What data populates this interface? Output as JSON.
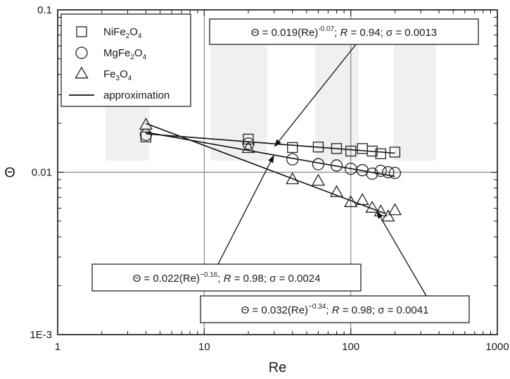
{
  "chart_data": {
    "type": "scatter",
    "xlabel": "Re",
    "ylabel": "Θ",
    "xscale": "log",
    "yscale": "log",
    "xlim": [
      1,
      1000
    ],
    "ylim": [
      0.001,
      0.1
    ],
    "x_ticks": [
      {
        "value": 1,
        "label": "1"
      },
      {
        "value": 10,
        "label": "10"
      },
      {
        "value": 100,
        "label": "100"
      },
      {
        "value": 1000,
        "label": "1000"
      }
    ],
    "y_ticks": [
      {
        "value": 0.001,
        "label": "1E-3"
      },
      {
        "value": 0.01,
        "label": "0.01"
      },
      {
        "value": 0.1,
        "label": "0.1"
      }
    ],
    "grid": "major",
    "legend_position": "top-left",
    "series": [
      {
        "name": "NiFe2O4",
        "marker": "square",
        "x": [
          4,
          20,
          40,
          60,
          80,
          100,
          120,
          140,
          160,
          200
        ],
        "y": [
          0.0165,
          0.016,
          0.0142,
          0.0143,
          0.014,
          0.0135,
          0.014,
          0.0135,
          0.013,
          0.0133
        ]
      },
      {
        "name": "MgFe2O4",
        "marker": "circle",
        "x": [
          4,
          20,
          40,
          60,
          80,
          100,
          120,
          140,
          160,
          180,
          200
        ],
        "y": [
          0.017,
          0.015,
          0.012,
          0.0112,
          0.011,
          0.0105,
          0.0103,
          0.0098,
          0.0102,
          0.01,
          0.0099
        ]
      },
      {
        "name": "Fe3O4",
        "marker": "triangle",
        "x": [
          4,
          20,
          40,
          60,
          80,
          100,
          120,
          140,
          160,
          180,
          200
        ],
        "y": [
          0.0195,
          0.014,
          0.009,
          0.0088,
          0.0075,
          0.0065,
          0.0067,
          0.006,
          0.0057,
          0.0053,
          0.0058
        ]
      }
    ],
    "fits": [
      {
        "series": "NiFe2O4",
        "a": 0.019,
        "b": -0.07,
        "x_range": [
          4,
          200
        ]
      },
      {
        "series": "MgFe2O4",
        "a": 0.022,
        "b": -0.16,
        "x_range": [
          4,
          200
        ]
      },
      {
        "series": "Fe3O4",
        "a": 0.032,
        "b": -0.34,
        "x_range": [
          4,
          170
        ]
      }
    ],
    "legend": [
      {
        "marker": "square",
        "text": "NiFe",
        "sub1": "2",
        "mid": "O",
        "sub2": "4"
      },
      {
        "marker": "circle",
        "text": "MgFe",
        "sub1": "2",
        "mid": "O",
        "sub2": "4"
      },
      {
        "marker": "triangle",
        "text": "Fe",
        "sub1": "3",
        "mid": "O",
        "sub2": "4"
      },
      {
        "marker": "line",
        "text": "approximation"
      }
    ],
    "annotations": [
      {
        "id": "ni",
        "prefix": "Θ = 0.019(Re)",
        "exponent": "-0.07",
        "fit_text": "; ",
        "r_label": "R",
        "r_value": " = 0.94; ",
        "sigma_label": "σ",
        "sigma_value": " = 0.0013",
        "arrow_to": {
          "x": 30,
          "y": 0.0143
        }
      },
      {
        "id": "mg",
        "prefix": "Θ = 0.022(Re)",
        "exponent": "−0.16",
        "fit_text": "; ",
        "r_label": "R",
        "r_value": " = 0.98; ",
        "sigma_label": "σ",
        "sigma_value": " = 0.0024",
        "arrow_to": {
          "x": 30,
          "y": 0.0128
        }
      },
      {
        "id": "fe",
        "prefix": "Θ = 0.032(Re)",
        "exponent": "−0.34",
        "fit_text": "; ",
        "r_label": "R",
        "r_value": " = 0.98; ",
        "sigma_label": "σ",
        "sigma_value": " = 0.0041",
        "arrow_to": {
          "x": 150,
          "y": 0.0058
        }
      }
    ]
  }
}
